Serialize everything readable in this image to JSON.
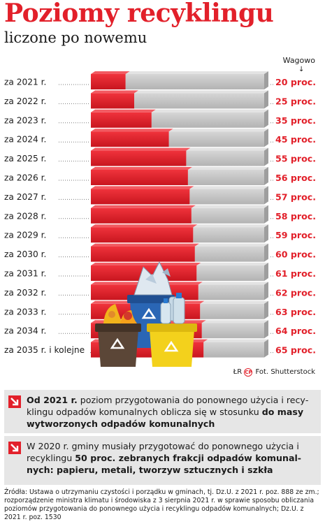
{
  "header": {
    "title": "Poziomy recyklingu",
    "subtitle": "liczone po nowemu",
    "column_head": "Wagowo",
    "column_arrow": "↓"
  },
  "chart_data": {
    "type": "bar",
    "categories": [
      "za 2021 r.",
      "za 2022 r.",
      "za 2023 r.",
      "za 2024 r.",
      "za 2025 r.",
      "za 2026 r.",
      "za 2027 r.",
      "za 2028 r.",
      "za 2029 r.",
      "za 2030 r.",
      "za 2031 r.",
      "za 2032 r.",
      "za 2033 r.",
      "za 2034 r.",
      "za 2035 r. i kolejne"
    ],
    "values": [
      20,
      25,
      35,
      45,
      55,
      56,
      57,
      58,
      59,
      60,
      61,
      62,
      63,
      64,
      65
    ],
    "value_labels": [
      "20 proc.",
      "25 proc.",
      "35 proc.",
      "45 proc.",
      "55 proc.",
      "56 proc.",
      "57 proc.",
      "58 proc.",
      "59 proc.",
      "60 proc.",
      "61 proc.",
      "62 proc.",
      "63 proc.",
      "64 proc.",
      "65 proc."
    ],
    "ylim": [
      0,
      100
    ],
    "colors": {
      "filled": "#e2202a",
      "remainder": "#c9c9c9",
      "value_text": "#e2202a"
    }
  },
  "credit": {
    "logo_text": "ŁR",
    "cp_text": "CP",
    "photo": "Fot. Shutterstock"
  },
  "box1": {
    "bold_start": "Od 2021 r.",
    "text": " poziom przygotowania do ponownego użycia i recy­klingu odpadów komunalnych oblicza się w stosunku ",
    "bold_end": "do masy wytworzonych odpadów komunalnych"
  },
  "box2": {
    "text": "W 2020 r. gminy musiały przygotować do ponownego użycia i recyklingu ",
    "bold_end": "50 proc. zebranych frakcji odpadów komunal­nych: papieru, metali, tworzyw sztucznych i szkła"
  },
  "sources": "Źródła: Ustawa o utrzymaniu czystości i porządku w gminach, tj. Dz.U. z 2021 r. poz. 888 ze zm.; rozporządzenie ministra klimatu i środowiska z 3 sierpnia 2021 r. w sprawie sposobu obliczania poziomów przygotowania do ponownego użycia i recyklingu odpadów komunalnych; Dz.U. z 2021 r. poz. 1530"
}
